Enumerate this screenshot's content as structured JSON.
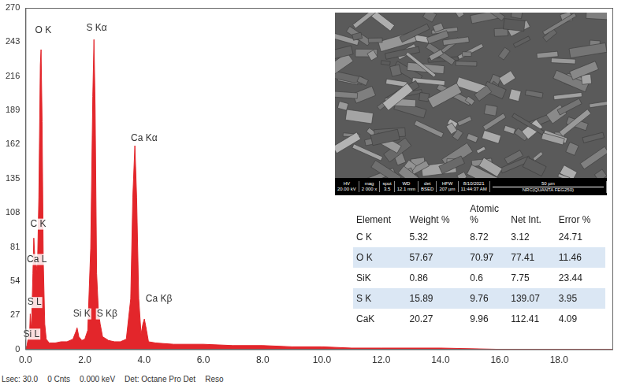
{
  "chart_data": {
    "type": "line",
    "color": "#e3262b",
    "grid": false,
    "xlim": [
      0,
      19.8
    ],
    "xticks": [
      {
        "value": 0,
        "label": "0.0"
      },
      {
        "value": 2,
        "label": "2.0"
      },
      {
        "value": 4,
        "label": "4.0"
      },
      {
        "value": 6,
        "label": "6.0"
      },
      {
        "value": 8,
        "label": "8.0"
      },
      {
        "value": 10,
        "label": "10.0"
      },
      {
        "value": 12,
        "label": "12.0"
      },
      {
        "value": 14,
        "label": "14.0"
      },
      {
        "value": 16,
        "label": "16.0"
      },
      {
        "value": 18,
        "label": "18.0"
      }
    ],
    "ylim": [
      0,
      270
    ],
    "yticks": [
      0,
      27,
      54,
      81,
      108,
      135,
      162,
      189,
      216,
      243,
      270
    ],
    "x": [
      0,
      0.05,
      0.1,
      0.13,
      0.16,
      0.2,
      0.25,
      0.28,
      0.31,
      0.34,
      0.4,
      0.45,
      0.5,
      0.525,
      0.56,
      0.6,
      0.65,
      0.7,
      0.8,
      1.0,
      1.2,
      1.4,
      1.6,
      1.7,
      1.74,
      1.8,
      1.9,
      2.0,
      2.1,
      2.2,
      2.27,
      2.31,
      2.35,
      2.4,
      2.46,
      2.52,
      2.6,
      2.8,
      3.0,
      3.2,
      3.4,
      3.55,
      3.62,
      3.69,
      3.75,
      3.82,
      3.9,
      3.96,
      4.01,
      4.06,
      4.15,
      4.4,
      5.0,
      6.0,
      7.0,
      8.0,
      9.0,
      10.0,
      11.0,
      12.0,
      14.0,
      16.0,
      18.0,
      19.8
    ],
    "values": [
      0,
      3,
      10,
      6,
      28,
      15,
      60,
      88,
      75,
      72,
      60,
      120,
      225,
      237,
      180,
      70,
      20,
      8,
      5,
      5,
      6,
      6,
      8,
      14,
      17,
      10,
      7,
      8,
      15,
      80,
      200,
      245,
      190,
      60,
      30,
      20,
      10,
      7,
      6,
      6,
      8,
      40,
      120,
      161,
      120,
      40,
      12,
      20,
      24,
      18,
      6,
      5,
      4,
      4,
      3,
      3,
      2,
      2,
      1,
      1,
      1,
      0,
      0,
      0
    ],
    "annotations": [
      {
        "text": "O K",
        "x": 0.6,
        "y": 252
      },
      {
        "text": "S Kα",
        "x": 2.4,
        "y": 254
      },
      {
        "text": "Ca Kα",
        "x": 4.0,
        "y": 167
      },
      {
        "text": "C K",
        "x": 0.43,
        "y": 99
      },
      {
        "text": "Ca L",
        "x": 0.38,
        "y": 71
      },
      {
        "text": "S L",
        "x": 0.3,
        "y": 37
      },
      {
        "text": "Si L",
        "x": 0.2,
        "y": 12
      },
      {
        "text": "Si K",
        "x": 1.9,
        "y": 28
      },
      {
        "text": "S Kβ",
        "x": 2.75,
        "y": 28
      },
      {
        "text": "Ca Kβ",
        "x": 4.5,
        "y": 40
      }
    ]
  },
  "sem_image": {
    "fields": [
      {
        "label": "HV",
        "value": "20.00 kV"
      },
      {
        "label": "mag",
        "value": "2 000 x"
      },
      {
        "label": "spot",
        "value": "3.5"
      },
      {
        "label": "WD",
        "value": "12.1 mm"
      },
      {
        "label": "det",
        "value": "BSED"
      },
      {
        "label": "HFW",
        "value": "207 µm"
      },
      {
        "label": "8/10/2021",
        "value": "11:44:37 AM"
      }
    ],
    "scale_bar": "50 µm",
    "instrument": "NRC(QUANTA FEG250)"
  },
  "table": {
    "header": [
      "Element",
      "Weight %",
      "Atomic %",
      "Net Int.",
      "Error %"
    ],
    "rows": [
      [
        "C K",
        5.32,
        8.72,
        3.12,
        24.71
      ],
      [
        "O K",
        57.67,
        70.97,
        77.41,
        11.46
      ],
      [
        "SiK",
        0.86,
        0.6,
        7.75,
        23.44
      ],
      [
        "S K",
        15.89,
        9.76,
        139.07,
        3.95
      ],
      [
        "CaK",
        20.27,
        9.96,
        112.41,
        4.09
      ]
    ]
  },
  "footer": [
    "Lsec: 30.0",
    "0 Cnts",
    "0.000 keV",
    "Det: Octane Pro Det",
    "Reso"
  ]
}
